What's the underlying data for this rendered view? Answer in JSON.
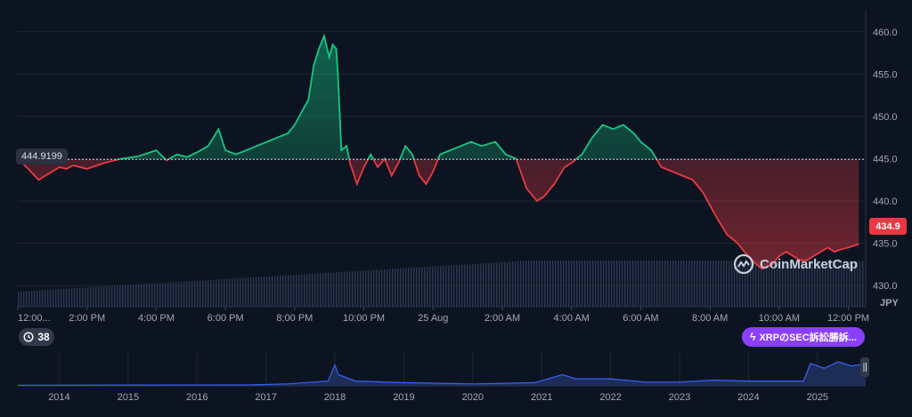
{
  "chart_data": {
    "type": "area",
    "currency_label": "JPY",
    "baseline": 444.9199,
    "baseline_label": "444.9199",
    "last_value": 434.9,
    "last_label": "434.9",
    "ylim": [
      427.5,
      462.5
    ],
    "y_ticks": [
      "460.0",
      "455.0",
      "450.0",
      "445.0",
      "440.0",
      "435.0",
      "430.0"
    ],
    "y_tick_values": [
      460,
      455,
      450,
      445,
      440,
      435,
      430
    ],
    "x_ticks": [
      "12:00...",
      "2:00 PM",
      "4:00 PM",
      "6:00 PM",
      "8:00 PM",
      "10:00 PM",
      "25 Aug",
      "2:00 AM",
      "4:00 AM",
      "6:00 AM",
      "8:00 AM",
      "10:00 AM",
      "12:00 PM"
    ],
    "x_tick_hours": [
      0,
      2,
      4,
      6,
      8,
      10,
      12,
      14,
      16,
      18,
      20,
      22,
      24
    ],
    "x_range_hours": [
      0,
      24.5
    ],
    "series": [
      {
        "x": [
          0,
          0.3,
          0.6,
          0.8,
          1.0,
          1.2,
          1.4,
          1.6,
          2.0,
          2.5,
          3.0,
          3.5,
          4.0,
          4.3,
          4.6,
          4.9,
          5.2,
          5.5,
          5.8,
          6.0,
          6.3,
          6.6,
          6.9,
          7.2,
          7.5,
          7.8,
          8.0,
          8.2,
          8.4,
          8.55,
          8.7,
          8.85,
          9.0,
          9.1,
          9.2,
          9.25,
          9.35,
          9.5,
          9.6,
          9.8,
          10.0,
          10.2,
          10.4,
          10.6,
          10.8,
          11.0,
          11.2,
          11.4,
          11.6,
          11.8,
          12.0,
          12.2,
          12.5,
          12.8,
          13.1,
          13.4,
          13.8,
          14.1,
          14.4,
          14.7,
          15.0,
          15.2,
          15.5,
          15.8,
          16.0,
          16.3,
          16.6,
          16.9,
          17.2,
          17.5,
          17.8,
          18.0,
          18.3,
          18.6,
          18.9,
          19.2,
          19.5,
          19.8,
          20.0,
          20.2,
          20.5,
          20.8,
          21.0,
          21.2,
          21.5,
          21.8,
          22.0,
          22.2,
          22.4,
          22.6,
          22.8,
          23.0,
          23.2,
          23.4,
          23.6,
          23.8,
          24.0,
          24.3
        ],
        "y": [
          445.0,
          443.8,
          442.5,
          443.0,
          443.5,
          444.0,
          443.8,
          444.2,
          443.8,
          444.5,
          445.0,
          445.3,
          446.0,
          444.8,
          445.5,
          445.2,
          445.8,
          446.5,
          448.5,
          446.0,
          445.5,
          446.0,
          446.5,
          447.0,
          447.5,
          448.0,
          449.0,
          450.5,
          452.0,
          456.0,
          458.0,
          459.5,
          457.0,
          458.5,
          458.0,
          455.0,
          446.0,
          446.5,
          444.5,
          442.0,
          444.0,
          445.5,
          444.0,
          445.0,
          443.0,
          444.5,
          446.5,
          445.5,
          443.0,
          442.0,
          443.5,
          445.5,
          446.0,
          446.5,
          447.0,
          446.5,
          447.0,
          445.5,
          445.0,
          441.5,
          440.0,
          440.5,
          442.0,
          444.0,
          444.5,
          445.5,
          447.5,
          449.0,
          448.5,
          449.0,
          448.0,
          447.0,
          446.0,
          444.0,
          443.5,
          443.0,
          442.5,
          441.0,
          439.5,
          438.0,
          436.0,
          435.0,
          434.0,
          433.0,
          432.0,
          432.5,
          433.5,
          434.0,
          433.5,
          433.0,
          433.0,
          433.5,
          434.0,
          434.5,
          434.0,
          434.3,
          434.5,
          434.9
        ]
      }
    ],
    "mini": {
      "years": [
        "2014",
        "2015",
        "2016",
        "2017",
        "2018",
        "2019",
        "2020",
        "2021",
        "2022",
        "2023",
        "2024",
        "2025"
      ]
    },
    "watermark": "CoinMarketCap",
    "history_badge": "38",
    "news_pill": "XRPのSEC訴訟勝訴..."
  }
}
